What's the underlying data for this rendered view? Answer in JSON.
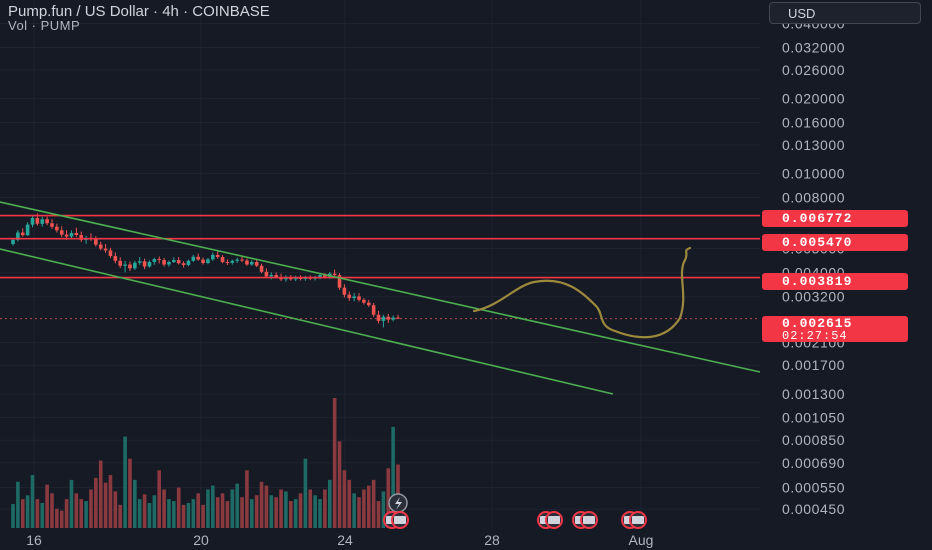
{
  "header": {
    "title": "Pump.fun / US Dollar · 4h · COINBASE",
    "subtitle": "Vol · PUMP",
    "currency": "USD"
  },
  "colors": {
    "background": "#161a25",
    "up": "#26a69a",
    "down": "#ef5350",
    "hline": "#f23645",
    "channel": "#4caf50",
    "drawing": "#9c8a3c"
  },
  "price_labels": {
    "level1": "0.006772",
    "level2": "0.005470",
    "level3": "0.003819",
    "current": "0.002615",
    "countdown": "02:27:54"
  },
  "chart_data": {
    "type": "candlestick",
    "title": "Pump.fun / US Dollar · 4h · COINBASE",
    "y_scale": "log",
    "y_range": [
      0.00043,
      0.0405
    ],
    "y_ticks": [
      "0.040000",
      "0.032000",
      "0.026000",
      "0.020000",
      "0.016000",
      "0.013000",
      "0.010000",
      "0.008000",
      "0.005000",
      "0.004000",
      "0.003200",
      "0.002100",
      "0.001700",
      "0.001300",
      "0.001050",
      "0.000850",
      "0.000690",
      "0.000550",
      "0.000450"
    ],
    "x_ticks": [
      "16",
      "20",
      "24",
      "28",
      "Aug"
    ],
    "horizontal_levels": [
      0.006772,
      0.00547,
      0.003819
    ],
    "current_price": 0.002615,
    "countdown": "02:27:54",
    "candles": [
      [
        0.00521,
        0.00551,
        0.00513,
        0.00541
      ],
      [
        0.00541,
        0.00592,
        0.00533,
        0.00579
      ],
      [
        0.00579,
        0.00602,
        0.00558,
        0.00565
      ],
      [
        0.00565,
        0.00637,
        0.00561,
        0.00623
      ],
      [
        0.00623,
        0.00681,
        0.00608,
        0.00662
      ],
      [
        0.00662,
        0.00692,
        0.00617,
        0.00628
      ],
      [
        0.00628,
        0.0067,
        0.00611,
        0.00655
      ],
      [
        0.00655,
        0.00671,
        0.0062,
        0.00631
      ],
      [
        0.00631,
        0.00655,
        0.00599,
        0.00611
      ],
      [
        0.00611,
        0.00629,
        0.00579,
        0.00591
      ],
      [
        0.00591,
        0.00613,
        0.00556,
        0.00568
      ],
      [
        0.00568,
        0.00592,
        0.00541,
        0.00558
      ],
      [
        0.00558,
        0.00591,
        0.00549,
        0.00577
      ],
      [
        0.00577,
        0.00606,
        0.00557,
        0.00566
      ],
      [
        0.00566,
        0.00584,
        0.00531,
        0.00541
      ],
      [
        0.00541,
        0.00563,
        0.00522,
        0.00551
      ],
      [
        0.00551,
        0.00575,
        0.00536,
        0.00543
      ],
      [
        0.00543,
        0.0056,
        0.00509,
        0.00518
      ],
      [
        0.00518,
        0.00532,
        0.00491,
        0.00499
      ],
      [
        0.00499,
        0.00521,
        0.0048,
        0.00491
      ],
      [
        0.00491,
        0.00503,
        0.00458,
        0.00466
      ],
      [
        0.00466,
        0.00482,
        0.00436,
        0.00446
      ],
      [
        0.00446,
        0.00461,
        0.00417,
        0.00426
      ],
      [
        0.00426,
        0.00445,
        0.00401,
        0.00431
      ],
      [
        0.00431,
        0.00443,
        0.00406,
        0.00416
      ],
      [
        0.00416,
        0.00446,
        0.0041,
        0.00438
      ],
      [
        0.00438,
        0.00462,
        0.0043,
        0.00444
      ],
      [
        0.00444,
        0.00455,
        0.00413,
        0.00423
      ],
      [
        0.00423,
        0.00448,
        0.00419,
        0.00441
      ],
      [
        0.00441,
        0.00459,
        0.0043,
        0.00453
      ],
      [
        0.00453,
        0.00464,
        0.00435,
        0.00449
      ],
      [
        0.00449,
        0.00458,
        0.00423,
        0.00431
      ],
      [
        0.00431,
        0.00447,
        0.00422,
        0.00441
      ],
      [
        0.00441,
        0.00461,
        0.00437,
        0.00449
      ],
      [
        0.00449,
        0.00462,
        0.00431,
        0.00436
      ],
      [
        0.00436,
        0.00444,
        0.00419,
        0.00429
      ],
      [
        0.00429,
        0.00451,
        0.00424,
        0.00446
      ],
      [
        0.00446,
        0.00471,
        0.00441,
        0.00463
      ],
      [
        0.00463,
        0.00477,
        0.00446,
        0.00451
      ],
      [
        0.00451,
        0.0046,
        0.00431,
        0.00437
      ],
      [
        0.00437,
        0.00458,
        0.00432,
        0.00452
      ],
      [
        0.00452,
        0.00481,
        0.00446,
        0.00471
      ],
      [
        0.00471,
        0.00486,
        0.00455,
        0.00462
      ],
      [
        0.00462,
        0.0047,
        0.00436,
        0.00441
      ],
      [
        0.00441,
        0.00452,
        0.00429,
        0.00438
      ],
      [
        0.00438,
        0.00451,
        0.00431,
        0.00446
      ],
      [
        0.00446,
        0.00459,
        0.00437,
        0.00451
      ],
      [
        0.00451,
        0.00462,
        0.00441,
        0.00447
      ],
      [
        0.00447,
        0.00455,
        0.00426,
        0.00431
      ],
      [
        0.00431,
        0.00449,
        0.00426,
        0.00441
      ],
      [
        0.00441,
        0.00453,
        0.00421,
        0.00426
      ],
      [
        0.00426,
        0.00434,
        0.00398,
        0.00403
      ],
      [
        0.00403,
        0.00416,
        0.00379,
        0.00386
      ],
      [
        0.00386,
        0.00401,
        0.00376,
        0.00391
      ],
      [
        0.00391,
        0.004,
        0.0038,
        0.00383
      ],
      [
        0.00383,
        0.00396,
        0.0037,
        0.00376
      ],
      [
        0.00376,
        0.00391,
        0.00368,
        0.00383
      ],
      [
        0.00383,
        0.00391,
        0.00371,
        0.00376
      ],
      [
        0.00376,
        0.00389,
        0.0037,
        0.00381
      ],
      [
        0.00381,
        0.0039,
        0.00372,
        0.00377
      ],
      [
        0.00377,
        0.00388,
        0.00371,
        0.00383
      ],
      [
        0.00383,
        0.0039,
        0.00373,
        0.00378
      ],
      [
        0.00378,
        0.00389,
        0.00372,
        0.00384
      ],
      [
        0.00384,
        0.00396,
        0.00376,
        0.00391
      ],
      [
        0.00391,
        0.00398,
        0.00378,
        0.00382
      ],
      [
        0.00382,
        0.00402,
        0.00377,
        0.00396
      ],
      [
        0.00396,
        0.00411,
        0.00386,
        0.00391
      ],
      [
        0.00391,
        0.00398,
        0.00341,
        0.00348
      ],
      [
        0.00348,
        0.00359,
        0.00318,
        0.00326
      ],
      [
        0.00326,
        0.00336,
        0.00308,
        0.00316
      ],
      [
        0.00316,
        0.00331,
        0.00307,
        0.00321
      ],
      [
        0.00321,
        0.00331,
        0.00306,
        0.00311
      ],
      [
        0.00311,
        0.00316,
        0.00298,
        0.00303
      ],
      [
        0.00303,
        0.00311,
        0.00291,
        0.00296
      ],
      [
        0.00296,
        0.00302,
        0.00266,
        0.00271
      ],
      [
        0.00271,
        0.00281,
        0.0025,
        0.00256
      ],
      [
        0.00256,
        0.00271,
        0.00241,
        0.00266
      ],
      [
        0.00266,
        0.00273,
        0.00251,
        0.00259
      ],
      [
        0.00259,
        0.00269,
        0.00255,
        0.00264
      ],
      [
        0.00264,
        0.00271,
        0.0026,
        0.002615
      ]
    ],
    "volume": [
      0.25,
      0.48,
      0.3,
      0.34,
      0.55,
      0.3,
      0.26,
      0.45,
      0.36,
      0.2,
      0.18,
      0.3,
      0.5,
      0.36,
      0.3,
      0.28,
      0.4,
      0.52,
      0.7,
      0.47,
      0.55,
      0.38,
      0.24,
      0.95,
      0.72,
      0.5,
      0.3,
      0.35,
      0.26,
      0.34,
      0.6,
      0.4,
      0.3,
      0.28,
      0.42,
      0.24,
      0.26,
      0.3,
      0.36,
      0.24,
      0.4,
      0.44,
      0.32,
      0.36,
      0.28,
      0.4,
      0.46,
      0.32,
      0.6,
      0.3,
      0.34,
      0.48,
      0.44,
      0.34,
      0.32,
      0.4,
      0.38,
      0.28,
      0.3,
      0.36,
      0.72,
      0.4,
      0.34,
      0.3,
      0.4,
      0.5,
      1.35,
      0.9,
      0.6,
      0.5,
      0.36,
      0.32,
      0.4,
      0.44,
      0.5,
      0.28,
      0.38,
      0.62,
      1.05,
      0.66
    ]
  }
}
